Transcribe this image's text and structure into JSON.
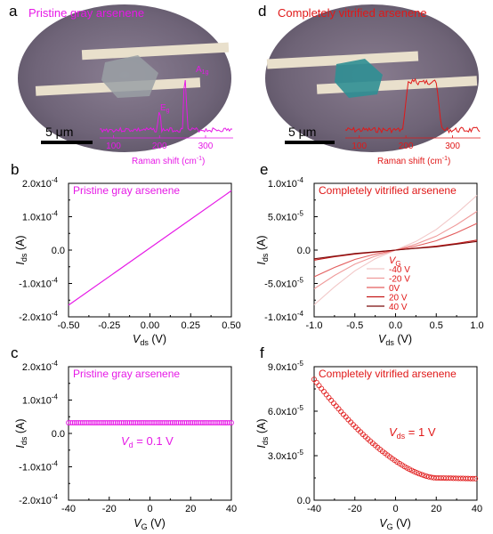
{
  "colors": {
    "magenta": "#e619e6",
    "red": "#e01818",
    "scale_bar": "#000000"
  },
  "panels": {
    "a": {
      "letter": "a",
      "title": "Pristine gray arsenene",
      "scale_bar": "5 μm",
      "peak_labels": {
        "eg": "E",
        "eg_sub": "g",
        "a1g": "A",
        "a1g_sub": "1g"
      },
      "raman_ticks": [
        "100",
        "200",
        "300"
      ],
      "raman_axis": "Raman shift (cm",
      "raman_axis_sup": "-1",
      "raman_axis_end": ")"
    },
    "d": {
      "letter": "d",
      "title": "Completely vitrified arsenene",
      "scale_bar": "5 μm",
      "raman_ticks": [
        "100",
        "200",
        "300"
      ],
      "raman_axis": "Raman shift (cm",
      "raman_axis_sup": "-1",
      "raman_axis_end": ")"
    },
    "b": {
      "letter": "b",
      "legend": "Pristine gray arsenene"
    },
    "c": {
      "letter": "c",
      "legend": "Pristine gray arsenene",
      "annotation_main": "V",
      "annotation_sub": "d",
      "annotation_rest": " = 0.1 V"
    },
    "e": {
      "letter": "e",
      "legend": "Completely vitrified arsenene",
      "legend_title_main": "V",
      "legend_title_sub": "G",
      "legend_items": [
        "-40 V",
        "-20 V",
        "0V",
        "20 V",
        "40 V"
      ]
    },
    "f": {
      "letter": "f",
      "legend": "Completely vitrified arsenene",
      "annotation_main": "V",
      "annotation_sub": "ds",
      "annotation_rest": " = 1 V"
    }
  },
  "axis_labels": {
    "ids": {
      "main": "I",
      "sub": "ds",
      "rest": " (A)"
    },
    "vds": {
      "main": "V",
      "sub": "ds",
      "rest": " (V)"
    },
    "vg": {
      "main": "V",
      "sub": "G",
      "rest": " (V)"
    }
  },
  "chart_data": [
    {
      "panel": "b",
      "type": "line",
      "xlim": [
        -0.5,
        0.5
      ],
      "ylim": [
        -0.0002,
        0.0002
      ],
      "x_ticks": [
        "-0.50",
        "-0.25",
        "0.00",
        "0.25",
        "0.50"
      ],
      "y_ticks": [
        {
          "m": "-2.0x10",
          "e": "-4"
        },
        {
          "m": "-1.0x10",
          "e": "-4"
        },
        {
          "m": "0.0",
          "e": ""
        },
        {
          "m": "1.0x10",
          "e": "-4"
        },
        {
          "m": "2.0x10",
          "e": "-4"
        }
      ],
      "series": [
        {
          "color": "#e619e6",
          "x": [
            -0.5,
            0.5
          ],
          "y": [
            -0.000165,
            0.000178
          ]
        }
      ]
    },
    {
      "panel": "c",
      "type": "scatter",
      "xlim": [
        -40,
        40
      ],
      "ylim": [
        -0.0002,
        0.0002
      ],
      "x_ticks": [
        "-40",
        "-20",
        "0",
        "20",
        "40"
      ],
      "y_ticks": [
        {
          "m": "-2.0x10",
          "e": "-4"
        },
        {
          "m": "-1.0x10",
          "e": "-4"
        },
        {
          "m": "0.0",
          "e": ""
        },
        {
          "m": "1.0x10",
          "e": "-4"
        },
        {
          "m": "2.0x10",
          "e": "-4"
        }
      ],
      "series": [
        {
          "color": "#e619e6",
          "x_start": -40,
          "x_end": 40,
          "x_step": 1,
          "y_constant": 3.2e-05
        }
      ]
    },
    {
      "panel": "e",
      "type": "line",
      "xlim": [
        -1,
        1
      ],
      "ylim": [
        -0.0001,
        0.0001
      ],
      "x_ticks": [
        "-1.0",
        "-0.5",
        "0.0",
        "0.5",
        "1.0"
      ],
      "y_ticks": [
        {
          "m": "-1.0x10",
          "e": "-4"
        },
        {
          "m": "-5.0x10",
          "e": "-5"
        },
        {
          "m": "0.0",
          "e": ""
        },
        {
          "m": "5.0x10",
          "e": "-5"
        },
        {
          "m": "1.0x10",
          "e": "-4"
        }
      ],
      "series": [
        {
          "name": "-40 V",
          "color": "#f2c8c8",
          "x": [
            -1,
            -0.75,
            -0.5,
            -0.25,
            0,
            0.25,
            0.5,
            0.75,
            1
          ],
          "y": [
            -8.2e-05,
            -5.5e-05,
            -3.1e-05,
            -1.3e-05,
            0,
            1.3e-05,
            3.1e-05,
            5.5e-05,
            8.2e-05
          ]
        },
        {
          "name": "-20 V",
          "color": "#ef9b9b",
          "x": [
            -1,
            -0.75,
            -0.5,
            -0.25,
            0,
            0.25,
            0.5,
            0.75,
            1
          ],
          "y": [
            -5.8e-05,
            -3.8e-05,
            -2.1e-05,
            -9e-06,
            0,
            9e-06,
            2.1e-05,
            3.8e-05,
            5.8e-05
          ]
        },
        {
          "name": "0V",
          "color": "#e35d5d",
          "x": [
            -1,
            -0.75,
            -0.5,
            -0.25,
            0,
            0.25,
            0.5,
            0.75,
            1
          ],
          "y": [
            -4e-05,
            -2.6e-05,
            -1.4e-05,
            -6e-06,
            0,
            6e-06,
            1.4e-05,
            2.6e-05,
            4e-05
          ]
        },
        {
          "name": "20 V",
          "color": "#c41818",
          "x": [
            -1,
            -0.75,
            -0.5,
            -0.25,
            0,
            0.25,
            0.5,
            0.75,
            1
          ],
          "y": [
            -1.5e-05,
            -1e-05,
            -6e-06,
            -3e-06,
            0,
            3e-06,
            6e-06,
            1e-05,
            1.5e-05
          ]
        },
        {
          "name": "40 V",
          "color": "#7a0a0a",
          "x": [
            -1,
            -0.75,
            -0.5,
            -0.25,
            0,
            0.25,
            0.5,
            0.75,
            1
          ],
          "y": [
            -1.3e-05,
            -9e-06,
            -5e-06,
            -2.5e-06,
            0,
            2.5e-06,
            5e-06,
            9e-06,
            1.3e-05
          ]
        }
      ]
    },
    {
      "panel": "f",
      "type": "scatter",
      "xlim": [
        -40,
        40
      ],
      "ylim": [
        0,
        9e-05
      ],
      "x_ticks": [
        "-40",
        "-20",
        "0",
        "20",
        "40"
      ],
      "y_ticks": [
        {
          "m": "0.0",
          "e": ""
        },
        {
          "m": "3.0x10",
          "e": "-5"
        },
        {
          "m": "6.0x10",
          "e": "-5"
        },
        {
          "m": "9.0x10",
          "e": "-5"
        }
      ],
      "series": [
        {
          "color": "#e01818",
          "x_start": -40,
          "x_end": 40,
          "x_step": 1.2,
          "y_at_min": 8.15e-05,
          "y_plateau": 1.5e-05,
          "x_plateau": 20
        }
      ]
    },
    {
      "panel": "a",
      "type": "line",
      "xlim": [
        70,
        360
      ],
      "title": "Raman shift (cm-1)",
      "series": [
        {
          "color": "#e619e6",
          "peaks": [
            {
              "x": 200,
              "height": "small"
            },
            {
              "x": 255,
              "height": "large"
            }
          ]
        }
      ]
    },
    {
      "panel": "d",
      "type": "line",
      "xlim": [
        70,
        360
      ],
      "series": [
        {
          "color": "#e01818",
          "broad_band": [
            205,
            265
          ]
        }
      ]
    }
  ]
}
